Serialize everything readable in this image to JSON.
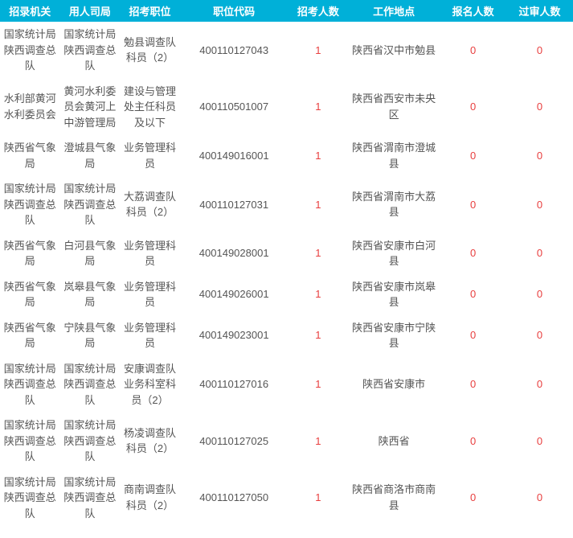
{
  "table": {
    "header_bg": "#00b0d8",
    "header_color": "#ffffff",
    "text_color": "#555555",
    "num_color": "#e83e3e",
    "columns": [
      "招录机关",
      "用人司局",
      "招考职位",
      "职位代码",
      "招考人数",
      "工作地点",
      "报名人数",
      "过审人数"
    ],
    "rows": [
      {
        "org": "国家统计局陕西调查总队",
        "dept": "国家统计局陕西调查总队",
        "pos": "勉县调查队科员（2）",
        "code": "400110127043",
        "cnt": "1",
        "loc": "陕西省汉中市勉县",
        "apply": "0",
        "pass": "0"
      },
      {
        "org": "水利部黄河水利委员会",
        "dept": "黄河水利委员会黄河上中游管理局",
        "pos": "建设与管理处主任科员及以下",
        "code": "400110501007",
        "cnt": "1",
        "loc": "陕西省西安市未央区",
        "apply": "0",
        "pass": "0"
      },
      {
        "org": "陕西省气象局",
        "dept": "澄城县气象局",
        "pos": "业务管理科员",
        "code": "400149016001",
        "cnt": "1",
        "loc": "陕西省渭南市澄城县",
        "apply": "0",
        "pass": "0"
      },
      {
        "org": "国家统计局陕西调查总队",
        "dept": "国家统计局陕西调查总队",
        "pos": "大荔调查队科员（2）",
        "code": "400110127031",
        "cnt": "1",
        "loc": "陕西省渭南市大荔县",
        "apply": "0",
        "pass": "0"
      },
      {
        "org": "陕西省气象局",
        "dept": "白河县气象局",
        "pos": "业务管理科员",
        "code": "400149028001",
        "cnt": "1",
        "loc": "陕西省安康市白河县",
        "apply": "0",
        "pass": "0"
      },
      {
        "org": "陕西省气象局",
        "dept": "岚皋县气象局",
        "pos": "业务管理科员",
        "code": "400149026001",
        "cnt": "1",
        "loc": "陕西省安康市岚皋县",
        "apply": "0",
        "pass": "0"
      },
      {
        "org": "陕西省气象局",
        "dept": "宁陕县气象局",
        "pos": "业务管理科员",
        "code": "400149023001",
        "cnt": "1",
        "loc": "陕西省安康市宁陕县",
        "apply": "0",
        "pass": "0"
      },
      {
        "org": "国家统计局陕西调查总队",
        "dept": "国家统计局陕西调查总队",
        "pos": "安康调查队业务科室科员（2）",
        "code": "400110127016",
        "cnt": "1",
        "loc": "陕西省安康市",
        "apply": "0",
        "pass": "0"
      },
      {
        "org": "国家统计局陕西调查总队",
        "dept": "国家统计局陕西调查总队",
        "pos": "杨凌调查队科员（2）",
        "code": "400110127025",
        "cnt": "1",
        "loc": "陕西省",
        "apply": "0",
        "pass": "0"
      },
      {
        "org": "国家统计局陕西调查总队",
        "dept": "国家统计局陕西调查总队",
        "pos": "商南调查队科员（2）",
        "code": "400110127050",
        "cnt": "1",
        "loc": "陕西省商洛市商南县",
        "apply": "0",
        "pass": "0"
      }
    ]
  }
}
